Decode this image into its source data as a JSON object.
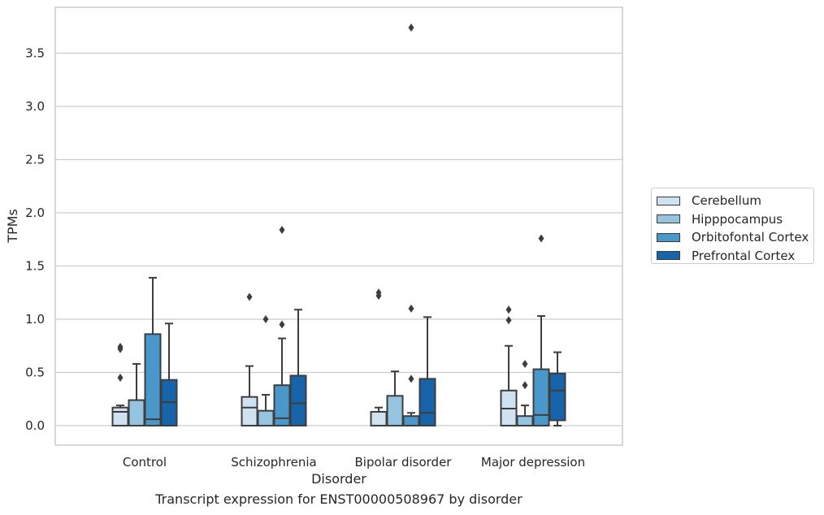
{
  "caption": "Transcript expression for ENST00000508967 by disorder",
  "chart_data": {
    "type": "box",
    "xlabel": "Disorder",
    "ylabel": "TPMs",
    "ylim": [
      -0.18,
      3.9
    ],
    "yticks": [
      "0.0",
      "0.5",
      "1.0",
      "1.5",
      "2.0",
      "2.5",
      "3.0",
      "3.5"
    ],
    "ytick_values": [
      0,
      0.5,
      1.0,
      1.5,
      2.0,
      2.5,
      3.0,
      3.5
    ],
    "grid": true,
    "legend_position": "right",
    "categories": [
      "Control",
      "Schizophrenia",
      "Bipolar disorder",
      "Major depression"
    ],
    "series": [
      {
        "name": "Cerebellum",
        "color": "#d0e1f2",
        "boxes": [
          {
            "whislo": 0,
            "q1": 0,
            "med": 0.13,
            "q3": 0.17,
            "whishi": 0.19,
            "fliers": [
              0.45,
              0.72,
              0.74
            ]
          },
          {
            "whislo": 0,
            "q1": 0,
            "med": 0.17,
            "q3": 0.27,
            "whishi": 0.56,
            "fliers": [
              1.21
            ]
          },
          {
            "whislo": 0,
            "q1": 0,
            "med": 0.0,
            "q3": 0.13,
            "whishi": 0.17,
            "fliers": [
              1.22,
              1.25
            ]
          },
          {
            "whislo": 0,
            "q1": 0,
            "med": 0.16,
            "q3": 0.33,
            "whishi": 0.75,
            "fliers": [
              0.99,
              1.09
            ]
          }
        ]
      },
      {
        "name": "Hipppocampus",
        "color": "#94c4df",
        "boxes": [
          {
            "whislo": 0,
            "q1": 0,
            "med": 0.0,
            "q3": 0.24,
            "whishi": 0.58,
            "fliers": []
          },
          {
            "whislo": 0,
            "q1": 0,
            "med": 0.0,
            "q3": 0.14,
            "whishi": 0.29,
            "fliers": [
              1.0
            ]
          },
          {
            "whislo": 0,
            "q1": 0,
            "med": 0.0,
            "q3": 0.28,
            "whishi": 0.51,
            "fliers": []
          },
          {
            "whislo": 0,
            "q1": 0,
            "med": 0.0,
            "q3": 0.09,
            "whishi": 0.19,
            "fliers": [
              0.38,
              0.58
            ]
          }
        ]
      },
      {
        "name": "Orbitofontal Cortex",
        "color": "#4a98c9",
        "boxes": [
          {
            "whislo": 0,
            "q1": 0,
            "med": 0.06,
            "q3": 0.86,
            "whishi": 1.39,
            "fliers": []
          },
          {
            "whislo": 0,
            "q1": 0,
            "med": 0.07,
            "q3": 0.38,
            "whishi": 0.82,
            "fliers": [
              0.95,
              1.84
            ]
          },
          {
            "whislo": 0,
            "q1": 0,
            "med": 0.0,
            "q3": 0.09,
            "whishi": 0.12,
            "fliers": [
              0.44,
              1.1,
              3.74
            ]
          },
          {
            "whislo": 0,
            "q1": 0,
            "med": 0.1,
            "q3": 0.53,
            "whishi": 1.03,
            "fliers": [
              1.76
            ]
          }
        ]
      },
      {
        "name": "Prefrontal Cortex",
        "color": "#1764ab",
        "boxes": [
          {
            "whislo": 0,
            "q1": 0,
            "med": 0.22,
            "q3": 0.43,
            "whishi": 0.96,
            "fliers": []
          },
          {
            "whislo": 0,
            "q1": 0,
            "med": 0.21,
            "q3": 0.47,
            "whishi": 1.09,
            "fliers": []
          },
          {
            "whislo": 0,
            "q1": 0,
            "med": 0.12,
            "q3": 0.44,
            "whishi": 1.02,
            "fliers": []
          },
          {
            "whislo": 0,
            "q1": 0.05,
            "med": 0.33,
            "q3": 0.49,
            "whishi": 0.69,
            "fliers": []
          }
        ]
      }
    ]
  }
}
